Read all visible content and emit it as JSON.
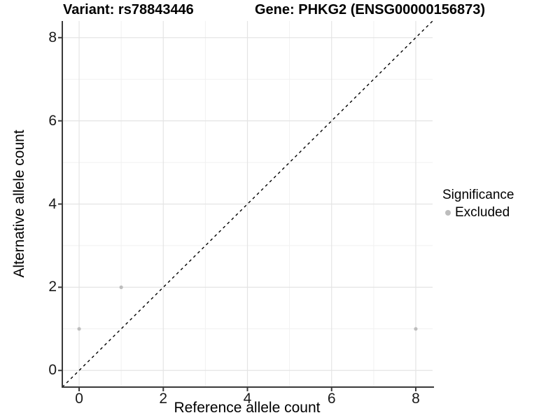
{
  "chart_data": {
    "type": "scatter",
    "title_left": "Variant: rs78843446",
    "title_right": "Gene: PHKG2 (ENSG00000156873)",
    "xlabel": "Reference allele count",
    "ylabel": "Alternative allele count",
    "xlim": [
      -0.4,
      8.4
    ],
    "ylim": [
      -0.4,
      8.4
    ],
    "x_ticks": [
      0,
      2,
      4,
      6,
      8
    ],
    "y_ticks": [
      0,
      2,
      4,
      6,
      8
    ],
    "x_minor_ticks": [
      1,
      3,
      5,
      7
    ],
    "y_minor_ticks": [
      1,
      3,
      5,
      7
    ],
    "grid": "major-and-minor",
    "identity_line": {
      "equation": "y = x",
      "style": "dashed",
      "color": "#000000"
    },
    "series": [
      {
        "name": "Excluded",
        "color": "#bdbdbd",
        "points": [
          [
            0,
            1
          ],
          [
            1,
            2
          ],
          [
            8,
            1
          ]
        ]
      }
    ],
    "legend": {
      "title": "Significance",
      "position": "right",
      "entries": [
        {
          "label": "Excluded",
          "color": "#bdbdbd"
        }
      ]
    },
    "colors": {
      "background": "#ffffff",
      "grid_major": "#e4e4e4",
      "grid_minor": "#f1f1f1",
      "axis_line": "#3a3a3a",
      "tick_text": "#1a1a1a",
      "point": "#bdbdbd"
    }
  }
}
